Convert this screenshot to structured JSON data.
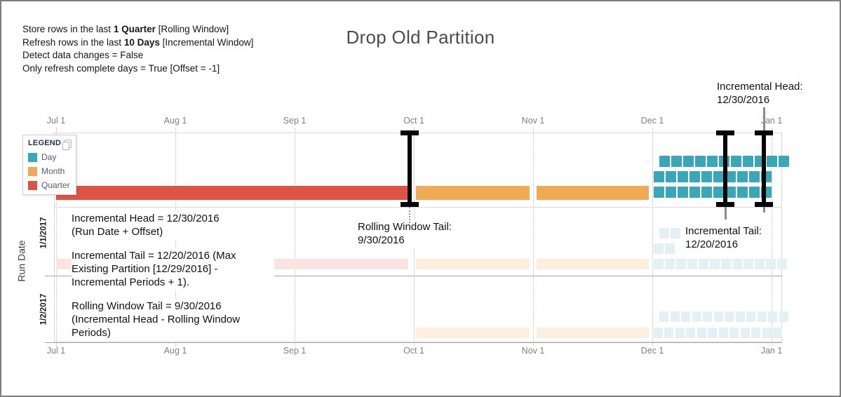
{
  "meta": {
    "title": "Drop Old Partition"
  },
  "config": {
    "lines": [
      {
        "pre": "Store rows in the last ",
        "bold": "1 Quarter",
        "post": " [Rolling Window]"
      },
      {
        "pre": "Refresh rows in the last ",
        "bold": "10 Days",
        "post": " [Incremental Window]"
      },
      {
        "pre": "Detect data changes = False",
        "bold": "",
        "post": ""
      },
      {
        "pre": "Only refresh complete days = True [Offset = -1]",
        "bold": "",
        "post": ""
      }
    ]
  },
  "legend": {
    "title": "LEGEND"
  },
  "axis": {
    "ylabel": "Run Date",
    "rows": [
      "1/1/2017",
      "1/2/2017"
    ]
  },
  "annotations": {
    "head_note": [
      "Incremental Head = 12/30/2016",
      "(Run Date + Offset)"
    ],
    "tail_note": [
      "Incremental Tail = 12/20/2016 (Max",
      "Existing Partition [12/29/2016] -",
      "Incremental Periods + 1)."
    ],
    "rolling_note": [
      "Rolling Window Tail = 9/30/2016",
      "(Incremental Head - Rolling Window",
      "Periods)"
    ]
  },
  "chart_data": {
    "type": "gantt",
    "title": "Drop Old Partition",
    "x_ticks": [
      "Jul 1",
      "Aug 1",
      "Sep 1",
      "Oct 1",
      "Nov 1",
      "Dec 1",
      "Jan 1"
    ],
    "x_range_months": 6,
    "ylabel": "Run Date",
    "layout": {
      "x_axis": "shown top and bottom",
      "legend_position": "top-left inside plot",
      "grid": "dotted monthly vertical lines"
    },
    "legend": [
      {
        "label": "Day",
        "color": "#39A7B7",
        "faded": "#E3F1F5"
      },
      {
        "label": "Month",
        "color": "#F2A954",
        "faded": "#FCEFDE"
      },
      {
        "label": "Quarter",
        "color": "#E05243",
        "faded": "#FAE3E1"
      }
    ],
    "markers": [
      {
        "name": "rolling-window-tail",
        "label": "Rolling Window Tail:",
        "date": "9/30/2016",
        "month": 2.967
      },
      {
        "name": "incremental-tail",
        "label": "Incremental Tail:",
        "date": "12/20/2016",
        "month": 5.613
      },
      {
        "name": "incremental-head",
        "label": "Incremental Head:",
        "date": "12/30/2016",
        "month": 5.935
      }
    ],
    "rows": [
      {
        "name": "run-current",
        "label": "",
        "faded": false,
        "bars": [
          {
            "kind": "Quarter",
            "m0": 0.0,
            "m1": 2.95
          },
          {
            "kind": "Month",
            "m0": 3.02,
            "m1": 3.97
          },
          {
            "kind": "Month",
            "m0": 4.03,
            "m1": 4.97
          }
        ],
        "day_rows": [
          {
            "level": 0,
            "m0": 5.01,
            "count": 10
          },
          {
            "level": 1,
            "m0": 5.01,
            "count": 10
          },
          {
            "level": 2,
            "m0": 5.06,
            "count": 11
          }
        ]
      },
      {
        "name": "run-1-1-2017",
        "label": "1/1/2017",
        "faded": true,
        "bars": [
          {
            "kind": "Quarter",
            "m0": 0.0,
            "m1": 2.95
          },
          {
            "kind": "Month",
            "m0": 3.02,
            "m1": 3.97
          },
          {
            "kind": "Month",
            "m0": 4.03,
            "m1": 4.97
          }
        ],
        "day_rows": [
          {
            "level": 0,
            "m0": 5.01,
            "count": 12
          },
          {
            "level": 1,
            "m0": 5.01,
            "count": 2
          },
          {
            "level": 2,
            "m0": 5.06,
            "count": 2
          }
        ]
      },
      {
        "name": "run-1-2-2017",
        "label": "1/2/2017",
        "faded": true,
        "bars": [
          {
            "kind": "Month",
            "m0": 3.02,
            "m1": 3.97
          },
          {
            "kind": "Month",
            "m0": 4.03,
            "m1": 4.97
          }
        ],
        "day_rows": [
          {
            "level": 0,
            "m0": 5.01,
            "count": 12
          },
          {
            "level": 1,
            "m0": 5.06,
            "count": 12
          }
        ]
      }
    ]
  }
}
